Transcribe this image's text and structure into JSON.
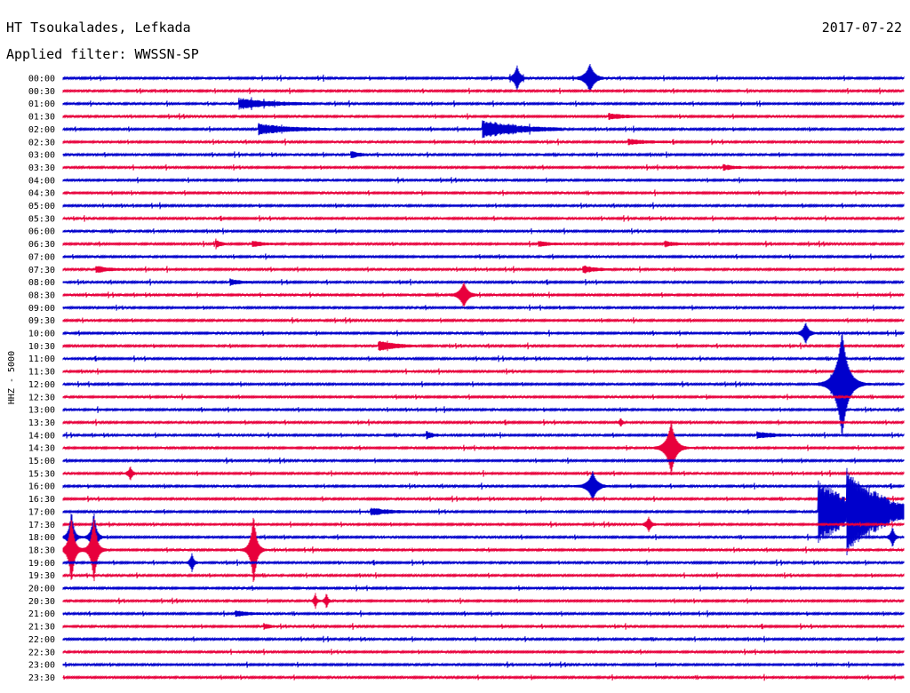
{
  "header": {
    "station": "HT Tsoukalades, Lefkada",
    "date": "2017-07-22",
    "filter_text": "Applied filter: WWSSN-SP"
  },
  "colors": {
    "even_row": "#0000cc",
    "odd_row": "#e8003c"
  },
  "chart_data": {
    "type": "helicorder",
    "title": "HT Tsoukalades, Lefkada",
    "ylabel": "HHZ - 5000",
    "row_labels": [
      "00:00",
      "00:30",
      "01:00",
      "01:30",
      "02:00",
      "02:30",
      "03:00",
      "03:30",
      "04:00",
      "04:30",
      "05:00",
      "05:30",
      "06:00",
      "06:30",
      "07:00",
      "07:30",
      "08:00",
      "08:30",
      "09:00",
      "09:30",
      "10:00",
      "10:30",
      "11:00",
      "11:30",
      "12:00",
      "12:30",
      "13:00",
      "13:30",
      "14:00",
      "14:30",
      "15:00",
      "15:30",
      "16:00",
      "16:30",
      "17:00",
      "17:30",
      "18:00",
      "18:30",
      "19:00",
      "19:30",
      "20:00",
      "20:30",
      "21:00",
      "21:30",
      "22:00",
      "22:30",
      "23:00",
      "23:30"
    ],
    "row_duration_minutes": 30,
    "events": [
      {
        "row": 0,
        "minute": 16.2,
        "amp": 14,
        "dur": 0.6,
        "type": "spike"
      },
      {
        "row": 0,
        "minute": 18.8,
        "amp": 16,
        "dur": 0.9,
        "type": "spike"
      },
      {
        "row": 2,
        "minute": 6.3,
        "amp": 6,
        "dur": 2.5,
        "type": "quake"
      },
      {
        "row": 4,
        "minute": 7.0,
        "amp": 6,
        "dur": 2.5,
        "type": "quake"
      },
      {
        "row": 4,
        "minute": 15.0,
        "amp": 10,
        "dur": 2.8,
        "type": "quake"
      },
      {
        "row": 3,
        "minute": 19.5,
        "amp": 3,
        "dur": 1.5,
        "type": "quake"
      },
      {
        "row": 5,
        "minute": 20.2,
        "amp": 3,
        "dur": 1.5,
        "type": "quake"
      },
      {
        "row": 6,
        "minute": 10.3,
        "amp": 4,
        "dur": 0.6,
        "type": "quake"
      },
      {
        "row": 7,
        "minute": 23.6,
        "amp": 3,
        "dur": 0.8,
        "type": "quake"
      },
      {
        "row": 13,
        "minute": 5.5,
        "amp": 4,
        "dur": 0.4,
        "type": "quake"
      },
      {
        "row": 13,
        "minute": 6.8,
        "amp": 3,
        "dur": 0.8,
        "type": "quake"
      },
      {
        "row": 13,
        "minute": 17.0,
        "amp": 3,
        "dur": 0.8,
        "type": "quake"
      },
      {
        "row": 13,
        "minute": 21.5,
        "amp": 3,
        "dur": 0.8,
        "type": "quake"
      },
      {
        "row": 15,
        "minute": 1.2,
        "amp": 4,
        "dur": 1.0,
        "type": "quake"
      },
      {
        "row": 15,
        "minute": 18.6,
        "amp": 4,
        "dur": 1.0,
        "type": "quake"
      },
      {
        "row": 16,
        "minute": 6.0,
        "amp": 3,
        "dur": 0.8,
        "type": "quake"
      },
      {
        "row": 17,
        "minute": 14.3,
        "amp": 14,
        "dur": 0.8,
        "type": "spike"
      },
      {
        "row": 20,
        "minute": 26.5,
        "amp": 12,
        "dur": 0.6,
        "type": "spike"
      },
      {
        "row": 21,
        "minute": 11.3,
        "amp": 6,
        "dur": 1.3,
        "type": "quake"
      },
      {
        "row": 24,
        "minute": 27.8,
        "amp": 60,
        "dur": 1.2,
        "type": "spike"
      },
      {
        "row": 27,
        "minute": 19.9,
        "amp": 5,
        "dur": 0.3,
        "type": "spike"
      },
      {
        "row": 28,
        "minute": 13.0,
        "amp": 4,
        "dur": 0.5,
        "type": "quake"
      },
      {
        "row": 28,
        "minute": 24.8,
        "amp": 4,
        "dur": 1.2,
        "type": "quake"
      },
      {
        "row": 29,
        "minute": 21.7,
        "amp": 30,
        "dur": 0.9,
        "type": "spike"
      },
      {
        "row": 31,
        "minute": 2.4,
        "amp": 8,
        "dur": 0.4,
        "type": "spike"
      },
      {
        "row": 32,
        "minute": 18.9,
        "amp": 16,
        "dur": 0.9,
        "type": "spike"
      },
      {
        "row": 34,
        "minute": 11.0,
        "amp": 4,
        "dur": 1.5,
        "type": "quake"
      },
      {
        "row": 34,
        "minute": 27.0,
        "amp": 40,
        "dur": 2.5,
        "type": "quake"
      },
      {
        "row": 34,
        "minute": 28.0,
        "amp": 34,
        "dur": 3.2,
        "type": "quake"
      },
      {
        "row": 35,
        "minute": 20.9,
        "amp": 8,
        "dur": 0.5,
        "type": "spike"
      },
      {
        "row": 36,
        "minute": 29.6,
        "amp": 12,
        "dur": 0.4,
        "type": "spike"
      },
      {
        "row": 36,
        "minute": 0.3,
        "amp": 30,
        "dur": 0.5,
        "type": "spike"
      },
      {
        "row": 36,
        "minute": 1.1,
        "amp": 30,
        "dur": 0.5,
        "type": "spike"
      },
      {
        "row": 37,
        "minute": 0.3,
        "amp": 38,
        "dur": 0.6,
        "type": "spike"
      },
      {
        "row": 37,
        "minute": 1.1,
        "amp": 38,
        "dur": 0.6,
        "type": "spike"
      },
      {
        "row": 37,
        "minute": 6.8,
        "amp": 40,
        "dur": 0.6,
        "type": "spike"
      },
      {
        "row": 38,
        "minute": 4.6,
        "amp": 10,
        "dur": 0.4,
        "type": "spike"
      },
      {
        "row": 41,
        "minute": 9.0,
        "amp": 9,
        "dur": 0.3,
        "type": "spike"
      },
      {
        "row": 41,
        "minute": 9.4,
        "amp": 9,
        "dur": 0.3,
        "type": "spike"
      },
      {
        "row": 42,
        "minute": 6.2,
        "amp": 3,
        "dur": 1.0,
        "type": "quake"
      },
      {
        "row": 43,
        "minute": 7.2,
        "amp": 3,
        "dur": 0.4,
        "type": "quake"
      }
    ]
  }
}
